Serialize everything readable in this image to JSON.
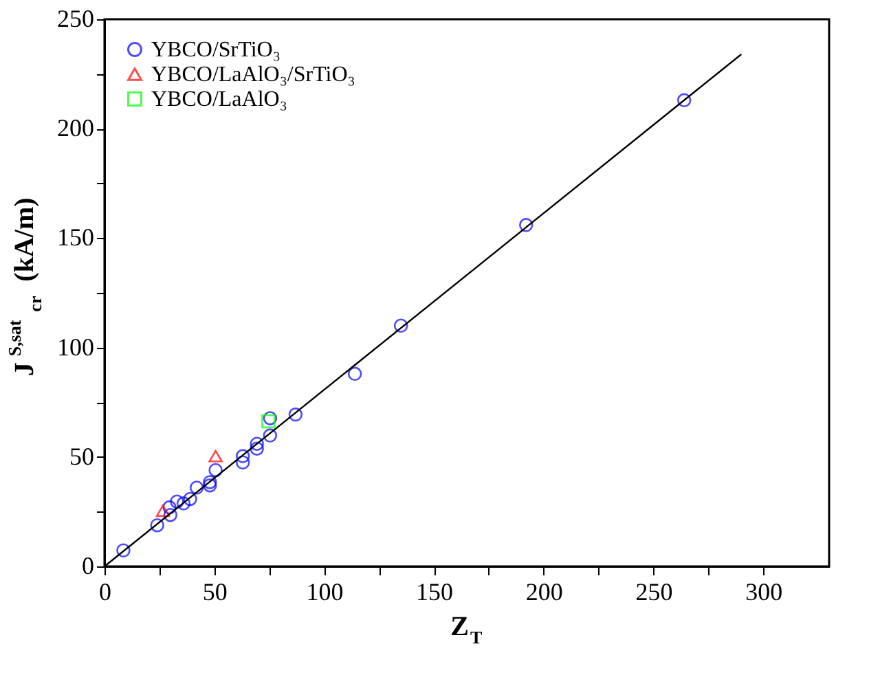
{
  "chart_data": {
    "type": "scatter",
    "xlabel": "Z$_{T}$",
    "ylabel": "J$^{S,sat}$$_{cr}$ (kA/m)",
    "xlim": [
      0,
      330
    ],
    "ylim": [
      0,
      250
    ],
    "xticks": [
      0,
      {
        "value": 25,
        "label": null
      },
      50,
      {
        "value": 75,
        "label": null
      },
      100,
      {
        "value": 125,
        "label": null
      },
      150,
      {
        "value": 175,
        "label": null
      },
      200,
      {
        "value": 225,
        "label": null
      },
      250,
      {
        "value": 275,
        "label": null
      },
      300
    ],
    "yticks": [
      0,
      {
        "value": 25,
        "label": null
      },
      50,
      {
        "value": 75,
        "label": null
      },
      100,
      {
        "value": 125,
        "label": null
      },
      150,
      {
        "value": 175,
        "label": null
      },
      200,
      {
        "value": 225,
        "label": null
      },
      250
    ],
    "grid": false,
    "legend": "top left",
    "series": [
      {
        "name": "YBCO/SrTiO₃",
        "color": "#0000ff",
        "marker": "circle",
        "x": [
          8.6,
          24,
          30,
          29.6,
          33,
          36,
          39,
          42,
          48,
          48,
          50.6,
          63,
          63,
          69.4,
          69.4,
          75.4,
          75.4,
          87,
          114,
          135,
          192,
          264
        ],
        "values": [
          7.3,
          18.8,
          23.5,
          27,
          29.6,
          28.8,
          30.8,
          36,
          37,
          38.5,
          44,
          47.5,
          50.4,
          53.8,
          56,
          59.8,
          67.7,
          69.4,
          88,
          110,
          156,
          213
        ]
      },
      {
        "name": "YBCO/LaAlO₃/SrTiO₃",
        "color": "#ff0000",
        "marker": "triangle",
        "x": [
          26.6,
          50.6
        ],
        "values": [
          25.4,
          50.4
        ]
      },
      {
        "name": "YBCO/LaAlO₃",
        "color": "#00ff00",
        "marker": "square",
        "x": [
          74.6
        ],
        "values": [
          66.3
        ]
      },
      {
        "type": "line",
        "color": "#000000",
        "line_style": "solid",
        "marker": "none",
        "x": [
          0,
          290
        ],
        "values": [
          0,
          234
        ]
      }
    ]
  }
}
